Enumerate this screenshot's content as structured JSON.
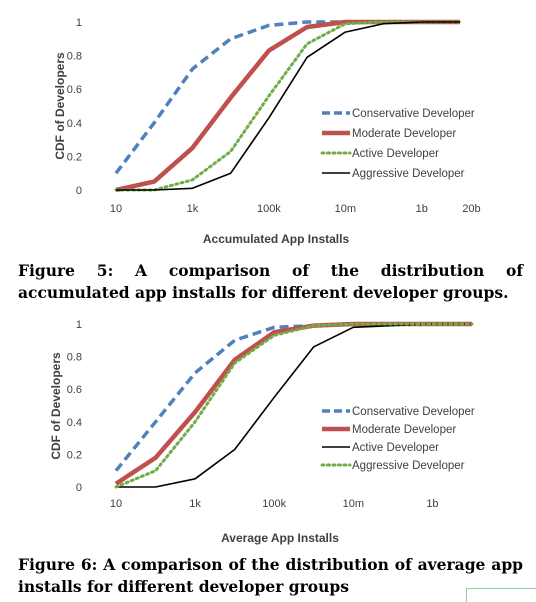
{
  "colors": {
    "conservative": "#4f81bd",
    "moderate": "#c0504d",
    "active": "#70ad47",
    "aggressive": "#000000",
    "axis_text": "#404040"
  },
  "chart_data": [
    {
      "type": "line",
      "title": "",
      "xlabel": "Accumulated App Installs",
      "ylabel": "CDF of Developers",
      "x_scale": "log",
      "x": [
        10,
        100,
        1000,
        10000,
        100000,
        1000000,
        10000000,
        100000000,
        1000000000,
        10000000000
      ],
      "xticks": [
        "10",
        "1k",
        "100k",
        "10m",
        "1b",
        "20b"
      ],
      "xtick_values": [
        10,
        1000,
        100000,
        10000000,
        1000000000,
        20000000000
      ],
      "yticks": [
        "0",
        "0.2",
        "0.4",
        "0.6",
        "0.8",
        "1"
      ],
      "ylim": [
        0,
        1
      ],
      "grid": false,
      "legend_position": "right",
      "series": [
        {
          "name": "Conservative Developer",
          "style": "dashed",
          "color": "#4f81bd",
          "values": [
            0.1,
            0.4,
            0.72,
            0.9,
            0.98,
            1.0,
            1.0,
            1.0,
            1.0,
            1.0
          ]
        },
        {
          "name": "Moderate Developer",
          "style": "thick",
          "color": "#c0504d",
          "values": [
            0.0,
            0.05,
            0.25,
            0.55,
            0.83,
            0.97,
            1.0,
            1.0,
            1.0,
            1.0
          ]
        },
        {
          "name": "Active Developer",
          "style": "dotted",
          "color": "#70ad47",
          "values": [
            0.0,
            0.0,
            0.06,
            0.23,
            0.56,
            0.87,
            0.99,
            1.0,
            1.0,
            1.0
          ]
        },
        {
          "name": "Aggressive Developer",
          "style": "solid",
          "color": "#000000",
          "values": [
            0.0,
            0.0,
            0.01,
            0.1,
            0.43,
            0.79,
            0.94,
            0.99,
            1.0,
            1.0
          ]
        }
      ]
    },
    {
      "type": "line",
      "title": "",
      "xlabel": "Average App Installs",
      "ylabel": "CDF of Developers",
      "x_scale": "log",
      "x": [
        10,
        100,
        1000,
        10000,
        100000,
        1000000,
        10000000,
        100000000,
        1000000000,
        10000000000
      ],
      "xticks": [
        "10",
        "1k",
        "100k",
        "10m",
        "1b"
      ],
      "xtick_values": [
        10,
        1000,
        100000,
        10000000,
        1000000000
      ],
      "yticks": [
        "0",
        "0.2",
        "0.4",
        "0.6",
        "0.8",
        "1"
      ],
      "ylim": [
        0,
        1
      ],
      "grid": false,
      "legend_position": "right",
      "series": [
        {
          "name": "Conservative Developer",
          "style": "dashed",
          "color": "#4f81bd",
          "values": [
            0.1,
            0.4,
            0.7,
            0.9,
            0.98,
            0.99,
            1.0,
            1.0,
            1.0,
            1.0
          ]
        },
        {
          "name": "Moderate Developer",
          "style": "thick",
          "color": "#c0504d",
          "values": [
            0.02,
            0.18,
            0.46,
            0.78,
            0.95,
            0.99,
            1.0,
            1.0,
            1.0,
            1.0
          ]
        },
        {
          "name": "Active Developer",
          "style": "solid",
          "color": "#000000",
          "values": [
            0.0,
            0.0,
            0.05,
            0.23,
            0.55,
            0.86,
            0.98,
            0.99,
            1.0,
            1.0
          ]
        },
        {
          "name": "Aggressive Developer",
          "style": "dotted",
          "color": "#70ad47",
          "values": [
            0.0,
            0.1,
            0.4,
            0.76,
            0.93,
            0.99,
            1.0,
            1.0,
            1.0,
            1.0
          ]
        }
      ]
    }
  ],
  "captions": {
    "fig5": "Figure 5: A comparison of the distribution of accumulated app installs for different developer groups.",
    "fig6": "Figure 6: A comparison of the distribution of average app installs for different developer groups"
  }
}
